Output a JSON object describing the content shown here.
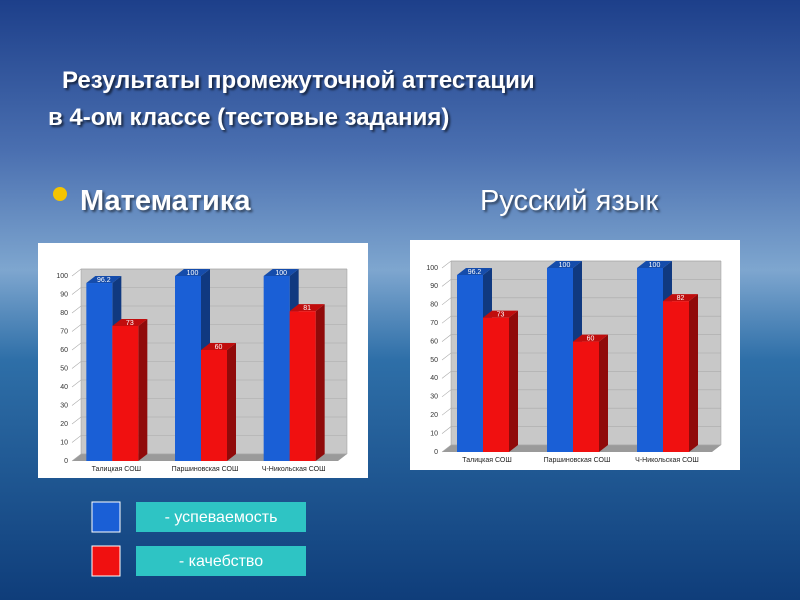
{
  "header": {
    "lines": [
      "Результаты промежуточной аттестации",
      "в 4-ом классе (тестовые задания)"
    ]
  },
  "chart_data": [
    {
      "type": "bar",
      "title": "Математика",
      "categories": [
        "Талицкая СОШ",
        "Паршиновская СОШ",
        "Ч-Никольская СОШ"
      ],
      "series": [
        {
          "name": "- успеваемость",
          "color": "#1a5fd6",
          "values": [
            96.2,
            100,
            100
          ]
        },
        {
          "name": "- качебство",
          "color": "#f01010",
          "values": [
            73,
            60,
            81
          ]
        }
      ],
      "ylim": [
        0,
        100
      ],
      "yticks": [
        0,
        10,
        20,
        30,
        40,
        50,
        60,
        70,
        80,
        90,
        100
      ],
      "grid": true
    },
    {
      "type": "bar",
      "title": "Русский язык",
      "categories": [
        "Талицкая СОШ",
        "Паршиновская СОШ",
        "Ч-Никольская СОШ"
      ],
      "series": [
        {
          "color": "#1a5fd6",
          "values": [
            96.2,
            100,
            100
          ]
        },
        {
          "color": "#f01010",
          "values": [
            73,
            60,
            82
          ]
        }
      ],
      "ylim": [
        0,
        100
      ],
      "yticks": [
        0,
        10,
        20,
        30,
        40,
        50,
        60,
        70,
        80,
        90,
        100
      ],
      "grid": true
    }
  ]
}
